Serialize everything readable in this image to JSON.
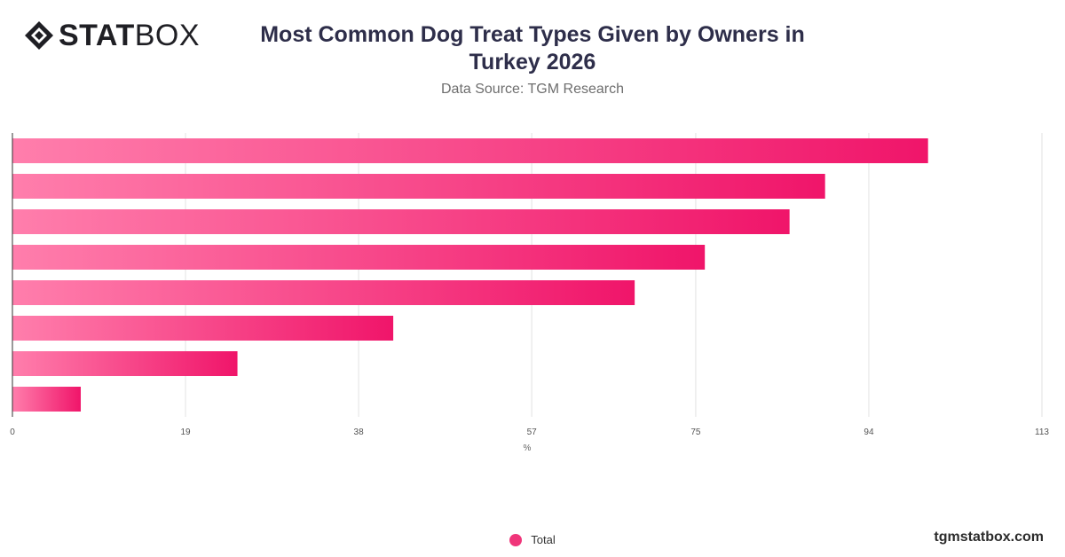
{
  "brand": {
    "logo_bold": "STAT",
    "logo_light": "BOX",
    "logo_icon": "diamond-logo-icon",
    "watermark": "tgmstatbox.com"
  },
  "chart_data": {
    "type": "bar",
    "orientation": "horizontal",
    "title": "Most Common Dog Treat Types Given by Owners in Turkey 2026",
    "subtitle": "Data Source: TGM Research",
    "xlabel": "%",
    "ylabel": "",
    "xlim": [
      0,
      113
    ],
    "ticks": [
      "0",
      "19",
      "38",
      "57",
      "75",
      "94",
      "113"
    ],
    "grid": true,
    "legend_position": "bottom",
    "series": [
      {
        "name": "Total",
        "color": "#f0357a",
        "values": [
          100.5,
          89.2,
          85.3,
          76,
          68.3,
          41.8,
          24.7,
          7.5
        ]
      }
    ]
  }
}
